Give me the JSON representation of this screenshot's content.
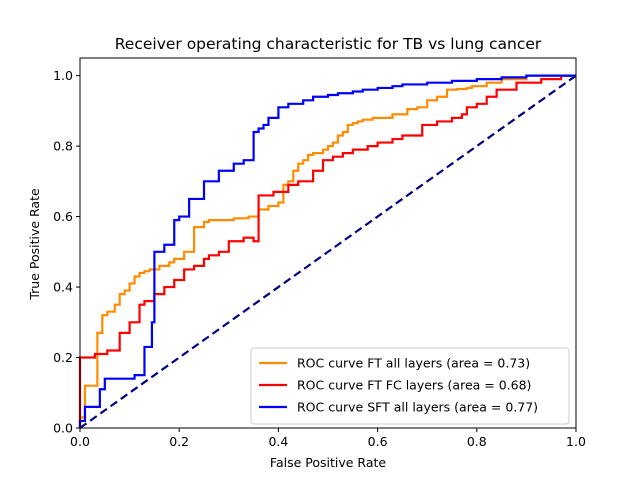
{
  "chart_data": {
    "type": "line",
    "title": "Receiver operating characteristic for TB vs lung cancer",
    "xlabel": "False Positive Rate",
    "ylabel": "True Positive Rate",
    "xlim": [
      0.0,
      1.0
    ],
    "ylim": [
      0.0,
      1.05
    ],
    "xticks": [
      0.0,
      0.2,
      0.4,
      0.6,
      0.8,
      1.0
    ],
    "yticks": [
      0.0,
      0.2,
      0.4,
      0.6,
      0.8,
      1.0
    ],
    "xtick_labels": [
      "0.0",
      "0.2",
      "0.4",
      "0.6",
      "0.8",
      "1.0"
    ],
    "ytick_labels": [
      "0.0",
      "0.2",
      "0.4",
      "0.6",
      "0.8",
      "1.0"
    ],
    "grid": false,
    "legend_position": "lower-right",
    "series": [
      {
        "name": "ROC curve FT all layers (area = 0.73)",
        "color": "#ff8c00",
        "style": "solid",
        "x": [
          0.0,
          0.0,
          0.01,
          0.01,
          0.035,
          0.035,
          0.045,
          0.045,
          0.055,
          0.055,
          0.07,
          0.07,
          0.08,
          0.08,
          0.09,
          0.09,
          0.1,
          0.1,
          0.11,
          0.11,
          0.12,
          0.12,
          0.13,
          0.13,
          0.14,
          0.14,
          0.16,
          0.16,
          0.18,
          0.18,
          0.19,
          0.19,
          0.21,
          0.21,
          0.23,
          0.23,
          0.25,
          0.25,
          0.26,
          0.26,
          0.27,
          0.27,
          0.31,
          0.31,
          0.34,
          0.34,
          0.36,
          0.36,
          0.38,
          0.38,
          0.4,
          0.4,
          0.41,
          0.41,
          0.42,
          0.42,
          0.43,
          0.43,
          0.44,
          0.44,
          0.45,
          0.45,
          0.46,
          0.46,
          0.47,
          0.47,
          0.49,
          0.49,
          0.5,
          0.5,
          0.51,
          0.51,
          0.52,
          0.52,
          0.53,
          0.53,
          0.54,
          0.54,
          0.55,
          0.55,
          0.56,
          0.56,
          0.57,
          0.57,
          0.59,
          0.59,
          0.63,
          0.63,
          0.66,
          0.66,
          0.68,
          0.68,
          0.7,
          0.7,
          0.72,
          0.72,
          0.74,
          0.74,
          0.76,
          0.76,
          0.78,
          0.78,
          0.79,
          0.79,
          0.82,
          0.82,
          0.85,
          0.85,
          0.9,
          0.9,
          0.95,
          0.95,
          1.0
        ],
        "y": [
          0.0,
          0.03,
          0.03,
          0.12,
          0.12,
          0.27,
          0.27,
          0.32,
          0.32,
          0.33,
          0.33,
          0.35,
          0.35,
          0.38,
          0.38,
          0.39,
          0.39,
          0.41,
          0.41,
          0.43,
          0.43,
          0.44,
          0.44,
          0.445,
          0.445,
          0.45,
          0.45,
          0.46,
          0.46,
          0.47,
          0.47,
          0.48,
          0.48,
          0.5,
          0.5,
          0.57,
          0.57,
          0.585,
          0.585,
          0.59,
          0.59,
          0.59,
          0.59,
          0.595,
          0.595,
          0.6,
          0.6,
          0.62,
          0.62,
          0.63,
          0.63,
          0.64,
          0.64,
          0.69,
          0.69,
          0.7,
          0.7,
          0.73,
          0.73,
          0.75,
          0.75,
          0.76,
          0.76,
          0.775,
          0.775,
          0.78,
          0.78,
          0.79,
          0.79,
          0.8,
          0.8,
          0.81,
          0.81,
          0.83,
          0.83,
          0.84,
          0.84,
          0.86,
          0.86,
          0.865,
          0.865,
          0.87,
          0.87,
          0.875,
          0.875,
          0.88,
          0.88,
          0.89,
          0.89,
          0.905,
          0.905,
          0.91,
          0.91,
          0.93,
          0.93,
          0.94,
          0.94,
          0.96,
          0.96,
          0.962,
          0.962,
          0.965,
          0.965,
          0.97,
          0.97,
          0.98,
          0.98,
          0.99,
          0.99,
          1.0,
          1.0,
          1.0,
          1.0
        ]
      },
      {
        "name": "ROC curve FT FC layers (area = 0.68)",
        "color": "#ff0000",
        "style": "solid",
        "x": [
          0.0,
          0.0,
          0.03,
          0.03,
          0.055,
          0.055,
          0.08,
          0.08,
          0.1,
          0.1,
          0.12,
          0.12,
          0.13,
          0.13,
          0.15,
          0.15,
          0.17,
          0.17,
          0.19,
          0.19,
          0.21,
          0.21,
          0.23,
          0.23,
          0.25,
          0.25,
          0.26,
          0.26,
          0.28,
          0.28,
          0.3,
          0.3,
          0.33,
          0.33,
          0.35,
          0.35,
          0.36,
          0.36,
          0.39,
          0.39,
          0.42,
          0.42,
          0.44,
          0.44,
          0.47,
          0.47,
          0.49,
          0.49,
          0.51,
          0.51,
          0.53,
          0.53,
          0.55,
          0.55,
          0.58,
          0.58,
          0.6,
          0.6,
          0.63,
          0.63,
          0.65,
          0.65,
          0.69,
          0.69,
          0.72,
          0.72,
          0.75,
          0.75,
          0.77,
          0.77,
          0.78,
          0.78,
          0.8,
          0.8,
          0.82,
          0.82,
          0.84,
          0.84,
          0.88,
          0.88,
          0.93,
          0.93,
          0.97,
          0.97,
          1.0
        ],
        "y": [
          0.0,
          0.2,
          0.2,
          0.21,
          0.21,
          0.22,
          0.22,
          0.27,
          0.27,
          0.3,
          0.3,
          0.35,
          0.35,
          0.36,
          0.36,
          0.38,
          0.38,
          0.4,
          0.4,
          0.42,
          0.42,
          0.45,
          0.45,
          0.46,
          0.46,
          0.48,
          0.48,
          0.49,
          0.49,
          0.5,
          0.5,
          0.53,
          0.53,
          0.54,
          0.54,
          0.53,
          0.53,
          0.66,
          0.66,
          0.67,
          0.67,
          0.69,
          0.69,
          0.7,
          0.7,
          0.73,
          0.73,
          0.76,
          0.76,
          0.77,
          0.77,
          0.78,
          0.78,
          0.79,
          0.79,
          0.8,
          0.8,
          0.81,
          0.81,
          0.82,
          0.82,
          0.83,
          0.83,
          0.86,
          0.86,
          0.87,
          0.87,
          0.88,
          0.88,
          0.89,
          0.89,
          0.91,
          0.91,
          0.92,
          0.92,
          0.94,
          0.94,
          0.96,
          0.96,
          0.98,
          0.98,
          0.99,
          0.99,
          1.0,
          1.0
        ]
      },
      {
        "name": "ROC curve SFT all layers (area = 0.77)",
        "color": "#0000ff",
        "style": "solid",
        "x": [
          0.0,
          0.0,
          0.01,
          0.01,
          0.04,
          0.04,
          0.05,
          0.05,
          0.11,
          0.11,
          0.13,
          0.13,
          0.145,
          0.145,
          0.15,
          0.15,
          0.17,
          0.17,
          0.19,
          0.19,
          0.2,
          0.2,
          0.22,
          0.22,
          0.25,
          0.25,
          0.28,
          0.28,
          0.31,
          0.31,
          0.33,
          0.33,
          0.35,
          0.35,
          0.36,
          0.36,
          0.37,
          0.37,
          0.38,
          0.38,
          0.4,
          0.4,
          0.42,
          0.42,
          0.45,
          0.45,
          0.47,
          0.47,
          0.5,
          0.5,
          0.52,
          0.52,
          0.55,
          0.55,
          0.57,
          0.57,
          0.6,
          0.6,
          0.63,
          0.63,
          0.65,
          0.65,
          0.7,
          0.7,
          0.75,
          0.75,
          0.8,
          0.8,
          0.85,
          0.85,
          0.9,
          0.9,
          0.95,
          0.95,
          1.0
        ],
        "y": [
          0.0,
          0.02,
          0.02,
          0.06,
          0.06,
          0.11,
          0.11,
          0.14,
          0.14,
          0.15,
          0.15,
          0.23,
          0.23,
          0.3,
          0.3,
          0.5,
          0.5,
          0.52,
          0.52,
          0.59,
          0.59,
          0.6,
          0.6,
          0.65,
          0.65,
          0.7,
          0.7,
          0.73,
          0.73,
          0.75,
          0.75,
          0.76,
          0.76,
          0.84,
          0.84,
          0.85,
          0.85,
          0.86,
          0.86,
          0.88,
          0.88,
          0.91,
          0.91,
          0.92,
          0.92,
          0.93,
          0.93,
          0.94,
          0.94,
          0.945,
          0.945,
          0.95,
          0.95,
          0.955,
          0.955,
          0.96,
          0.96,
          0.965,
          0.965,
          0.97,
          0.97,
          0.975,
          0.975,
          0.98,
          0.98,
          0.985,
          0.985,
          0.99,
          0.99,
          0.995,
          0.995,
          1.0,
          1.0,
          1.0,
          1.0
        ]
      },
      {
        "name": "chance",
        "color": "#000080",
        "style": "dashed",
        "in_legend": false,
        "x": [
          0.0,
          1.0
        ],
        "y": [
          0.0,
          1.0
        ]
      }
    ]
  }
}
